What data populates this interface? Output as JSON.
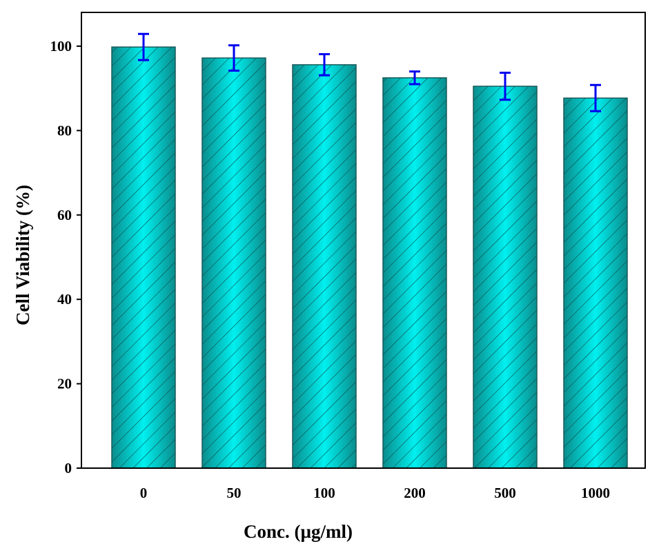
{
  "chart_data": {
    "type": "bar",
    "title": "",
    "xlabel": "Conc. (µg/ml)",
    "ylabel": "Cell Viability (%)",
    "categories": [
      "0",
      "50",
      "100",
      "200",
      "500",
      "1000"
    ],
    "values": [
      99.8,
      97.2,
      95.6,
      92.5,
      90.5,
      87.7
    ],
    "errors": [
      3.1,
      3.0,
      2.5,
      1.5,
      3.2,
      3.1
    ],
    "ylim": [
      0,
      108
    ],
    "yticks": [
      0,
      20,
      40,
      60,
      80,
      100
    ],
    "grid": false,
    "legend": "none",
    "colors": {
      "bar_edge": "#0b8c8c",
      "bar_center": "#00f0f0",
      "hatch": "#0a4a4a",
      "error": "#0000ee",
      "axis": "#000000"
    }
  }
}
